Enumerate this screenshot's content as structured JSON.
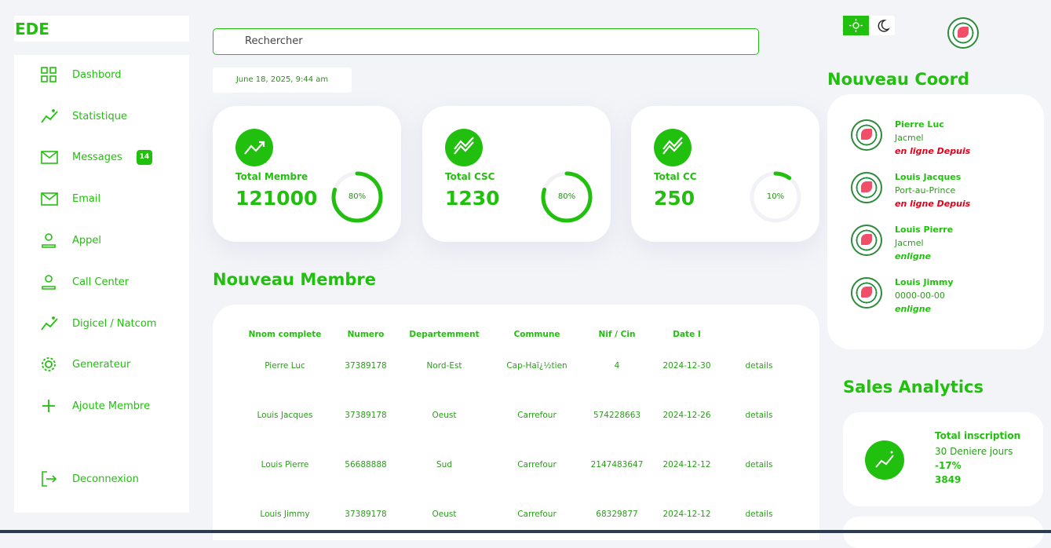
{
  "brand": "EDE",
  "nav": [
    {
      "label": "Dashbord"
    },
    {
      "label": "Statistique"
    },
    {
      "label": "Messages",
      "badge": 14
    },
    {
      "label": "Email"
    },
    {
      "label": "Appel"
    },
    {
      "label": "Call Center"
    },
    {
      "label": "Digicel / Natcom"
    },
    {
      "label": "Generateur"
    },
    {
      "label": "Ajoute Membre"
    }
  ],
  "logout": "Deconnexion",
  "search_placeholder": "Rechercher",
  "date": "June 18, 2025, 9:44 am",
  "cards": [
    {
      "title": "Total Membre",
      "value": 121000,
      "percent": 80,
      "percent_label": "80%"
    },
    {
      "title": "Total CSC",
      "value": 1230,
      "percent": 80,
      "percent_label": "80%"
    },
    {
      "title": "Total CC",
      "value": 250,
      "percent": 10,
      "percent_label": "10%"
    }
  ],
  "members": {
    "title": "Nouveau Membre",
    "columns": [
      "Nnom complete",
      "Numero",
      "Departemment",
      "Commune",
      "Nif / Cin",
      "Date I"
    ],
    "rows": [
      [
        "Pierre Luc",
        "37389178",
        "Nord-Est",
        "Cap-Haï¿½tien",
        "4",
        "2024-12-30",
        "details"
      ],
      [
        "Louis Jacques",
        "37389178",
        "Oeust",
        "Carrefour",
        "574228663",
        "2024-12-26",
        "details"
      ],
      [
        "Louis Pierre",
        "56688888",
        "Sud",
        "Carrefour",
        "2147483647",
        "2024-12-12",
        "details"
      ],
      [
        "Louis Jimmy",
        "37389178",
        "Oeust",
        "Carrefour",
        "68329877",
        "2024-12-12",
        "details"
      ]
    ]
  },
  "coord": {
    "title": "Nouveau Coord",
    "entries": [
      {
        "name": "Pierre Luc",
        "place": "Jacmel",
        "status": "en ligne Depuis"
      },
      {
        "name": "Louis Jacques",
        "place": "Port-au-Prince",
        "status": "en ligne Depuis"
      },
      {
        "name": "Louis Pierre",
        "place": "Jacmel",
        "status": "enligne"
      },
      {
        "name": "Louis Jimmy",
        "place": "0000-00-00",
        "status": "enligne"
      }
    ]
  },
  "sales": {
    "title": "Sales Analytics",
    "label": "Total inscription",
    "period": "30 Deniere jours",
    "change": "-17%",
    "total": 3849
  }
}
